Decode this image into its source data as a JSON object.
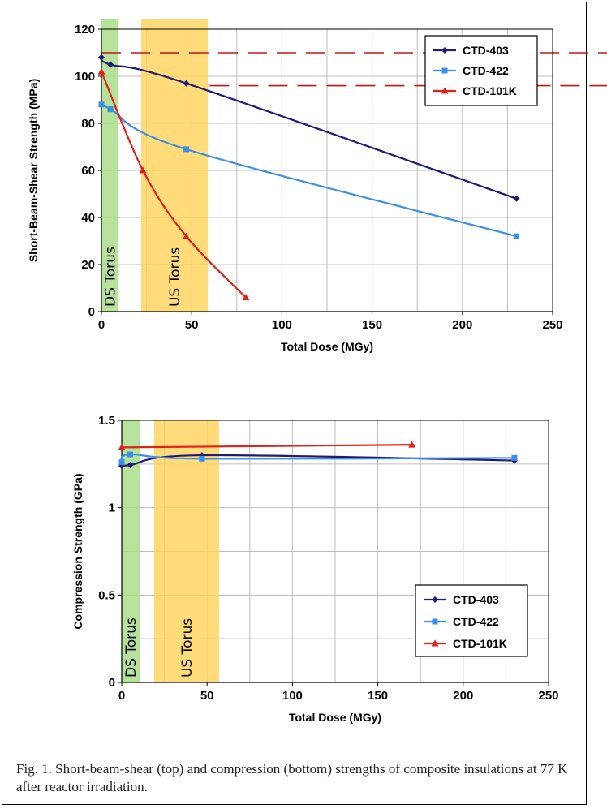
{
  "caption": "Fig. 1. Short-beam-shear (top) and compression (bottom) strengths of composite insulations at 77 K after reactor irradiation.",
  "chart_data": [
    {
      "type": "line",
      "xlabel": "Total Dose (MGy)",
      "ylabel": "Short-Beam-Shear Strength (MPa)",
      "xlim": [
        0,
        250
      ],
      "ylim": [
        0,
        120
      ],
      "xticks": [
        "0",
        "50",
        "100",
        "150",
        "200",
        "250"
      ],
      "yticks": [
        "0",
        "20",
        "40",
        "60",
        "80",
        "100",
        "120"
      ],
      "grid": true,
      "legend_position": "top-right",
      "series": [
        {
          "name": "CTD-403",
          "color": "#1f1a78",
          "marker": "diamond",
          "x": [
            0,
            5,
            47,
            230
          ],
          "y": [
            108,
            105,
            97,
            48
          ]
        },
        {
          "name": "CTD-422",
          "color": "#3c8fe6",
          "marker": "square",
          "x": [
            0,
            5,
            47,
            230
          ],
          "y": [
            88,
            86,
            69,
            32
          ]
        },
        {
          "name": "CTD-101K",
          "color": "#e0201a",
          "marker": "triangle",
          "x": [
            0,
            23,
            47,
            80
          ],
          "y": [
            102,
            60,
            32,
            6
          ]
        }
      ],
      "bands": [
        {
          "label": "DS Torus",
          "x_range": [
            0,
            9.5
          ],
          "color": "#a6dc86"
        },
        {
          "label": "US Torus",
          "x_range": [
            22,
            59
          ],
          "color": "#ffd45c"
        }
      ],
      "reference_lines": [
        {
          "y": 110,
          "color": "#c0161a",
          "style": "dashed"
        },
        {
          "y": 96,
          "color": "#c0161a",
          "style": "dashed"
        }
      ]
    },
    {
      "type": "line",
      "xlabel": "Total Dose (MGy)",
      "ylabel": "Compression Strength (GPa)",
      "xlim": [
        0,
        250
      ],
      "ylim": [
        0,
        1.5
      ],
      "xticks": [
        "0",
        "50",
        "100",
        "150",
        "200",
        "250"
      ],
      "yticks": [
        "0",
        "0.5",
        "1",
        "1.5"
      ],
      "grid": true,
      "legend_position": "bottom-right",
      "series": [
        {
          "name": "CTD-403",
          "color": "#1f1a78",
          "marker": "diamond",
          "x": [
            0,
            5,
            47,
            230
          ],
          "y": [
            1.24,
            1.245,
            1.3,
            1.27
          ]
        },
        {
          "name": "CTD-422",
          "color": "#3c8fe6",
          "marker": "square",
          "x": [
            0,
            5,
            47,
            230
          ],
          "y": [
            1.26,
            1.305,
            1.28,
            1.285
          ]
        },
        {
          "name": "CTD-101K",
          "color": "#e0201a",
          "marker": "triangle",
          "x": [
            0,
            170
          ],
          "y": [
            1.345,
            1.36
          ]
        }
      ],
      "bands": [
        {
          "label": "DS Torus",
          "x_range": [
            0,
            10.5
          ],
          "color": "#a6dc86"
        },
        {
          "label": "US Torus",
          "x_range": [
            19,
            57
          ],
          "color": "#ffd45c"
        }
      ]
    }
  ]
}
